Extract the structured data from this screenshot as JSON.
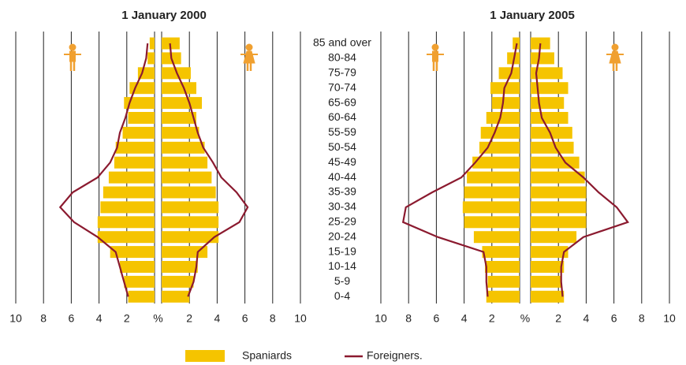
{
  "legend": [
    {
      "name": "Spaniards",
      "color": "#f5c400"
    },
    {
      "name": "Foreigners.",
      "color": "#8b1a2f"
    }
  ],
  "categories": [
    "85 and over",
    "80-84",
    "75-79",
    "70-74",
    "65-69",
    "60-64",
    "55-59",
    "50-54",
    "45-49",
    "40-44",
    "35-39",
    "30-34",
    "25-29",
    "20-24",
    "15-19",
    "10-14",
    "5-9",
    "0-4"
  ],
  "chart_data": [
    {
      "type": "pyramid",
      "title": "1 January 2000",
      "xlim": [
        0,
        10
      ],
      "xticks": [
        {
          "value": 0,
          "label": "%"
        },
        2,
        4,
        6,
        8,
        10
      ],
      "grid": true,
      "spaniards": {
        "left": [
          0.35,
          0.5,
          1.2,
          1.8,
          2.2,
          1.9,
          2.3,
          2.8,
          2.9,
          3.3,
          3.7,
          3.9,
          4.1,
          4.1,
          3.2,
          2.5,
          2.2,
          1.9
        ],
        "right": [
          1.3,
          1.4,
          2.1,
          2.5,
          2.9,
          2.5,
          2.7,
          3.1,
          3.3,
          3.6,
          3.9,
          4.1,
          4.1,
          4.1,
          3.3,
          2.6,
          2.3,
          2.0
        ]
      },
      "foreigners": {
        "left": [
          0.5,
          0.6,
          0.9,
          1.4,
          1.8,
          2.1,
          2.5,
          2.7,
          3.2,
          4.1,
          5.9,
          6.8,
          5.8,
          4.1,
          2.8,
          2.5,
          2.2,
          1.9
        ],
        "right": [
          0.6,
          0.7,
          1.1,
          1.6,
          2.0,
          2.3,
          2.6,
          3.0,
          3.7,
          4.3,
          5.4,
          6.2,
          5.6,
          3.8,
          2.6,
          2.5,
          2.3,
          1.9
        ]
      }
    },
    {
      "type": "pyramid",
      "title": "1 January 2005",
      "xlim": [
        0,
        10
      ],
      "xticks": [
        {
          "value": 0,
          "label": "%"
        },
        2,
        4,
        6,
        8,
        10
      ],
      "grid": true,
      "spaniards": {
        "left": [
          0.5,
          0.9,
          1.5,
          2.1,
          2.0,
          2.4,
          2.8,
          2.9,
          3.4,
          3.8,
          4.0,
          4.1,
          4.0,
          3.3,
          2.7,
          2.5,
          2.3,
          2.4
        ],
        "right": [
          1.4,
          1.7,
          2.3,
          2.7,
          2.4,
          2.7,
          3.0,
          3.1,
          3.5,
          3.9,
          4.0,
          4.0,
          4.0,
          3.3,
          2.7,
          2.4,
          2.2,
          2.4
        ]
      },
      "foreigners": {
        "left": [
          0.2,
          0.4,
          0.6,
          1.1,
          1.2,
          1.4,
          1.8,
          2.3,
          3.2,
          4.2,
          6.3,
          8.2,
          8.4,
          5.9,
          2.6,
          2.4,
          2.4,
          2.3
        ],
        "right": [
          0.7,
          0.6,
          0.4,
          0.5,
          0.6,
          0.8,
          1.4,
          1.8,
          2.5,
          3.8,
          4.9,
          6.2,
          7.0,
          3.8,
          2.4,
          2.2,
          2.2,
          2.3
        ]
      }
    }
  ]
}
